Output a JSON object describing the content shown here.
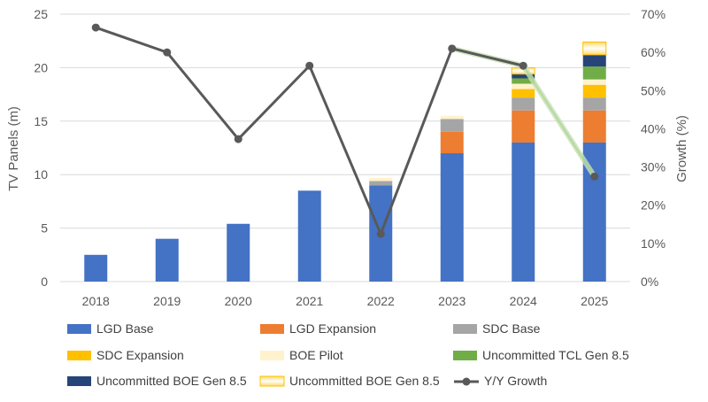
{
  "chart_data": {
    "type": "bar",
    "categories": [
      "2018",
      "2019",
      "2020",
      "2021",
      "2022",
      "2023",
      "2024",
      "2025"
    ],
    "ylabel": "TV Panels (m)",
    "y2label": "Growth (%)",
    "ylim": [
      0,
      25
    ],
    "y_ticks": [
      "0",
      "5",
      "10",
      "15",
      "20",
      "25"
    ],
    "y2lim": [
      0,
      70
    ],
    "y2_ticks": [
      "0%",
      "10%",
      "20%",
      "30%",
      "40%",
      "50%",
      "60%",
      "70%"
    ],
    "grid": true,
    "legend_position": "bottom",
    "series": [
      {
        "name": "LGD Base",
        "color": "#4472C4",
        "values": [
          2.5,
          4,
          5.4,
          8.5,
          9,
          12,
          13,
          13
        ]
      },
      {
        "name": "LGD Expansion",
        "color": "#ED7D31",
        "values": [
          0,
          0,
          0,
          0,
          0,
          2,
          3,
          3
        ]
      },
      {
        "name": "SDC Base",
        "color": "#A5A5A5",
        "values": [
          0,
          0,
          0,
          0,
          0.4,
          1.2,
          1.2,
          1.2
        ]
      },
      {
        "name": "SDC Expansion",
        "color": "#FFC000",
        "values": [
          0,
          0,
          0,
          0,
          0,
          0,
          0.8,
          1.2
        ]
      },
      {
        "name": "BOE Pilot",
        "color": "#FFF2CC",
        "values": [
          0,
          0,
          0,
          0,
          0.3,
          0.3,
          0.5,
          0.5
        ]
      },
      {
        "name": "Uncommitted TCL Gen 8.5",
        "color": "#70AD47",
        "values": [
          0,
          0,
          0,
          0,
          0,
          0,
          0.5,
          1.2
        ]
      },
      {
        "name": "Uncommitted BOE Gen 8.5",
        "color": "#264478",
        "values": [
          0,
          0,
          0,
          0,
          0,
          0,
          0.4,
          1.1
        ]
      },
      {
        "name": "Uncommitted BOE Gen 8.5",
        "color": "#FFD966",
        "pattern": "gradient",
        "values": [
          0,
          0,
          0,
          0,
          0,
          0,
          0.6,
          1.2
        ]
      }
    ],
    "line_series": {
      "name": "Y/Y Growth",
      "axis": "secondary",
      "color": "#595959",
      "values": [
        66.5,
        60,
        37.3,
        56.5,
        12.5,
        61,
        56.5,
        27.5
      ]
    }
  }
}
